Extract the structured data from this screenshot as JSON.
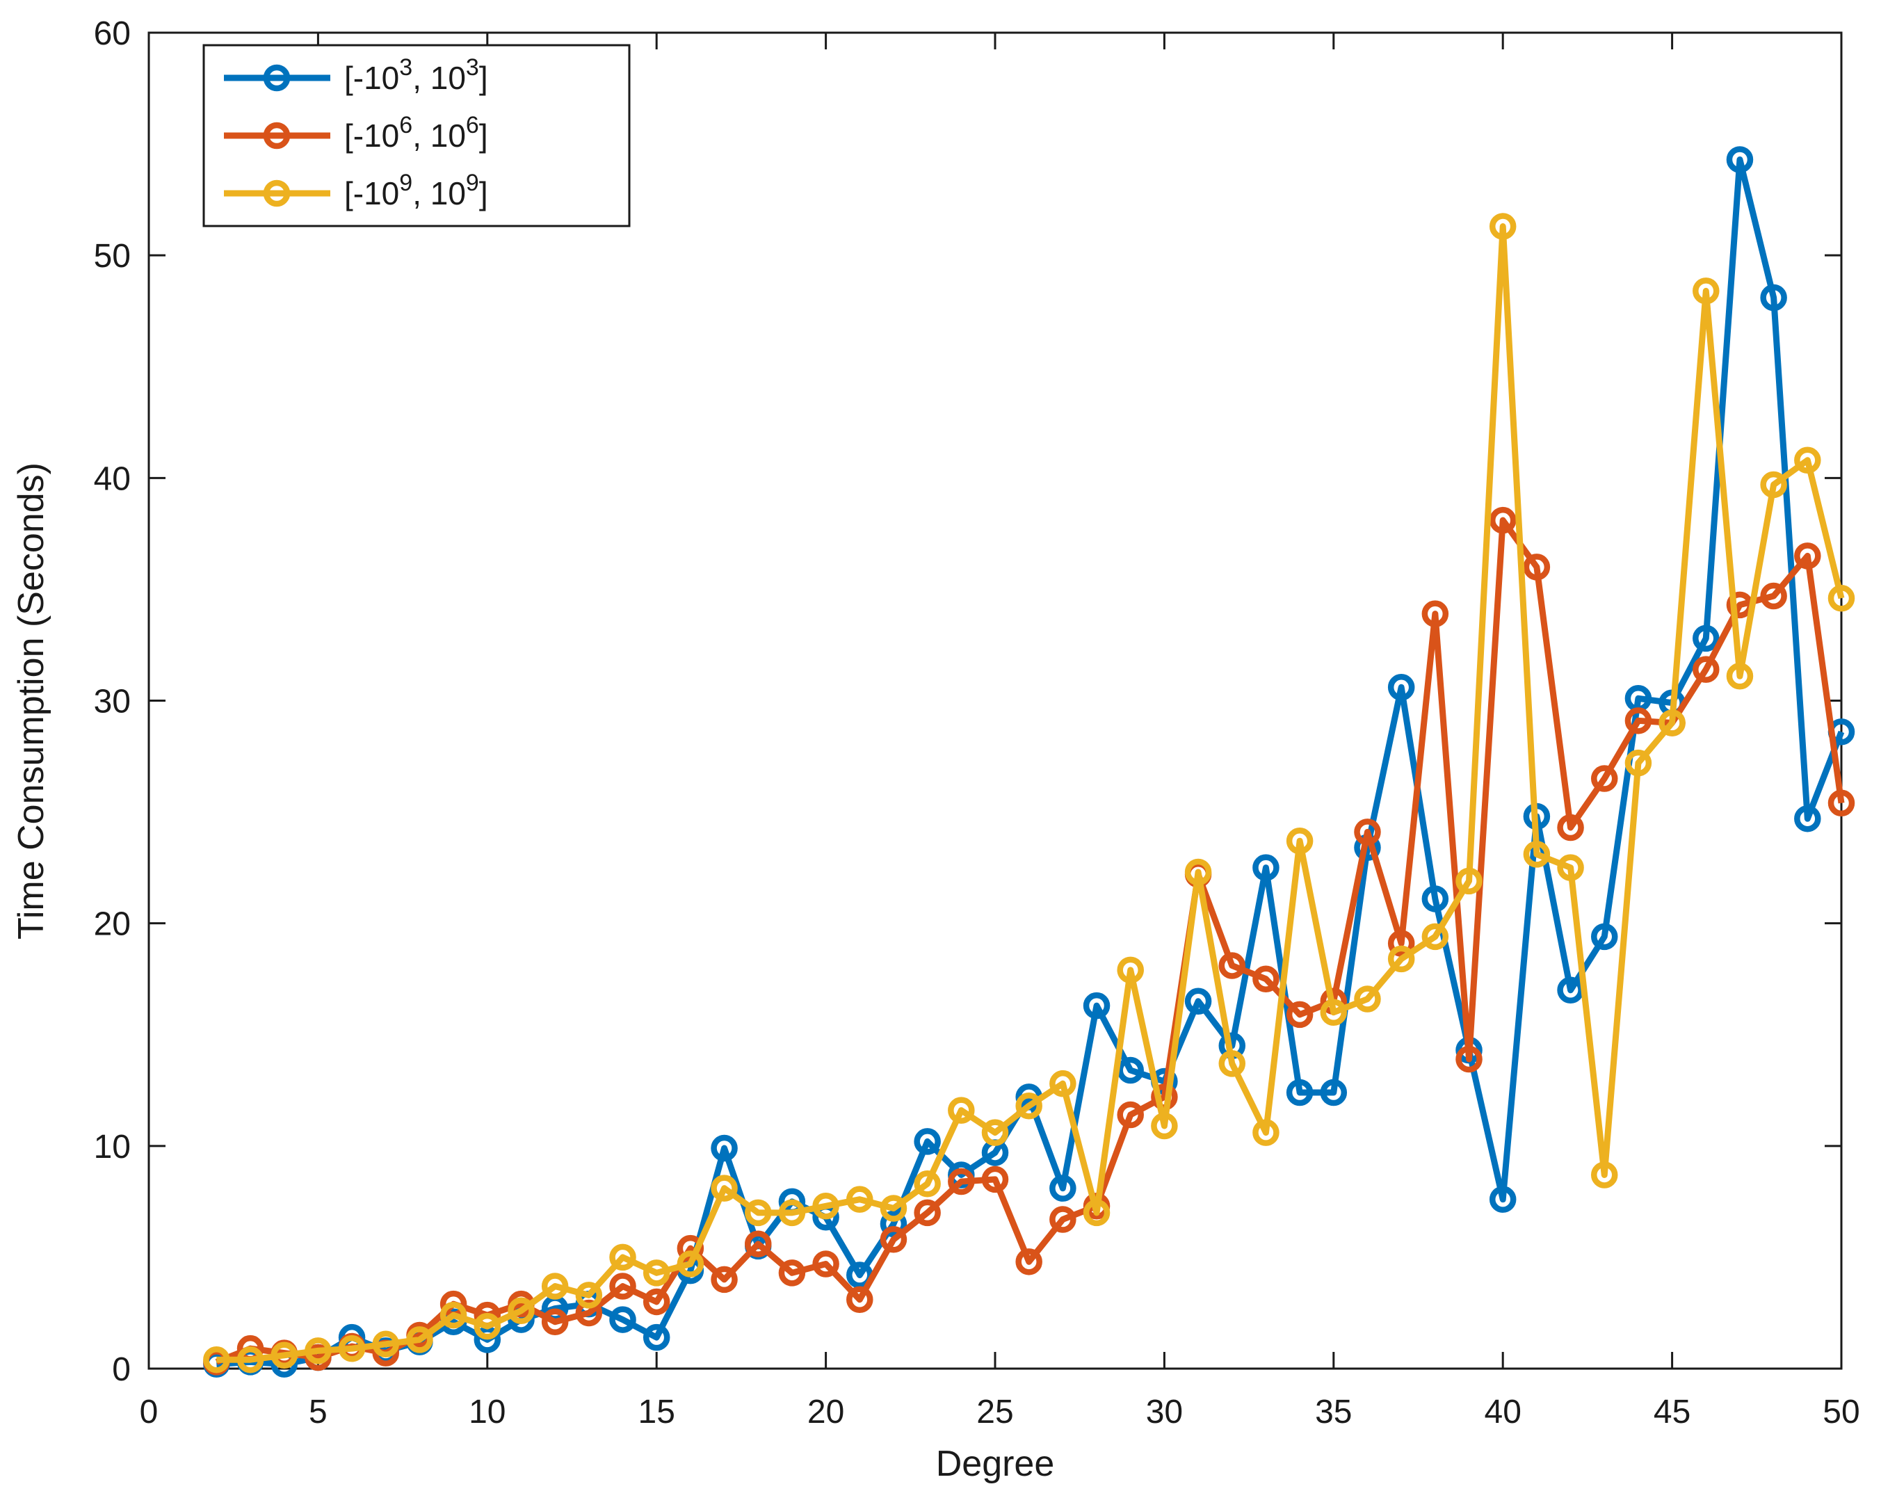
{
  "figure": {
    "background": "#ffffff",
    "axis_color": "#1a1a1a"
  },
  "chart_data": {
    "type": "line",
    "title": "",
    "xlabel": "Degree",
    "ylabel": "Time Consumption (Seconds)",
    "xlim": [
      0,
      50
    ],
    "ylim": [
      0,
      60
    ],
    "xticks": [
      0,
      5,
      10,
      15,
      20,
      25,
      30,
      35,
      40,
      45,
      50
    ],
    "yticks": [
      0,
      10,
      20,
      30,
      40,
      50,
      60
    ],
    "grid": false,
    "legend_position": "top-left",
    "marker": "circle",
    "x": [
      2,
      3,
      4,
      5,
      6,
      7,
      8,
      9,
      10,
      11,
      12,
      13,
      14,
      15,
      16,
      17,
      18,
      19,
      20,
      21,
      22,
      23,
      24,
      25,
      26,
      27,
      28,
      29,
      30,
      31,
      32,
      33,
      34,
      35,
      36,
      37,
      38,
      39,
      40,
      41,
      42,
      43,
      44,
      45,
      46,
      47,
      48,
      49,
      50
    ],
    "series": [
      {
        "name": "[-10^3, 10^3]",
        "color": "#0072BD",
        "legend": {
          "pre": "[-10",
          "sup1": "3",
          "mid": ", 10",
          "sup2": "3",
          "post": "]"
        },
        "values": [
          0.2,
          0.3,
          0.2,
          0.5,
          1.4,
          0.8,
          1.2,
          2.1,
          1.3,
          2.2,
          2.7,
          2.9,
          2.2,
          1.4,
          4.4,
          9.9,
          5.5,
          7.5,
          6.8,
          4.2,
          6.5,
          10.2,
          8.7,
          9.7,
          12.2,
          8.1,
          16.3,
          13.4,
          12.9,
          16.5,
          14.5,
          22.5,
          12.4,
          12.4,
          23.4,
          30.6,
          21.1,
          14.3,
          7.6,
          24.8,
          17.0,
          19.4,
          30.1,
          29.9,
          32.8,
          54.3,
          48.1,
          24.7,
          28.6
        ]
      },
      {
        "name": "[-10^6, 10^6]",
        "color": "#D95319",
        "legend": {
          "pre": "[-10",
          "sup1": "6",
          "mid": ", 10",
          "sup2": "6",
          "post": "]"
        },
        "values": [
          0.3,
          0.9,
          0.7,
          0.5,
          1.0,
          0.7,
          1.5,
          2.9,
          2.4,
          2.9,
          2.1,
          2.5,
          3.7,
          3.0,
          5.4,
          4.0,
          5.6,
          4.3,
          4.7,
          3.1,
          5.8,
          7.0,
          8.4,
          8.5,
          4.8,
          6.7,
          7.3,
          11.4,
          12.2,
          22.2,
          18.1,
          17.5,
          15.9,
          16.5,
          24.1,
          19.1,
          33.9,
          13.9,
          38.1,
          36.0,
          24.3,
          26.5,
          29.1,
          29.0,
          31.4,
          34.3,
          34.7,
          36.5,
          25.4
        ]
      },
      {
        "name": "[-10^9, 10^9]",
        "color": "#EDB120",
        "legend": {
          "pre": "[-10",
          "sup1": "9",
          "mid": ", 10",
          "sup2": "9",
          "post": "]"
        },
        "values": [
          0.4,
          0.4,
          0.6,
          0.8,
          0.9,
          1.1,
          1.3,
          2.4,
          1.9,
          2.6,
          3.7,
          3.3,
          5.0,
          4.3,
          4.7,
          8.1,
          7.0,
          7.0,
          7.3,
          7.6,
          7.2,
          8.3,
          11.6,
          10.6,
          11.8,
          12.8,
          7.0,
          17.9,
          10.9,
          22.3,
          13.7,
          10.6,
          23.7,
          16.0,
          16.6,
          18.4,
          19.4,
          21.9,
          51.3,
          23.1,
          22.5,
          8.7,
          27.2,
          29.0,
          48.4,
          31.1,
          39.7,
          40.8,
          34.6
        ]
      }
    ]
  }
}
